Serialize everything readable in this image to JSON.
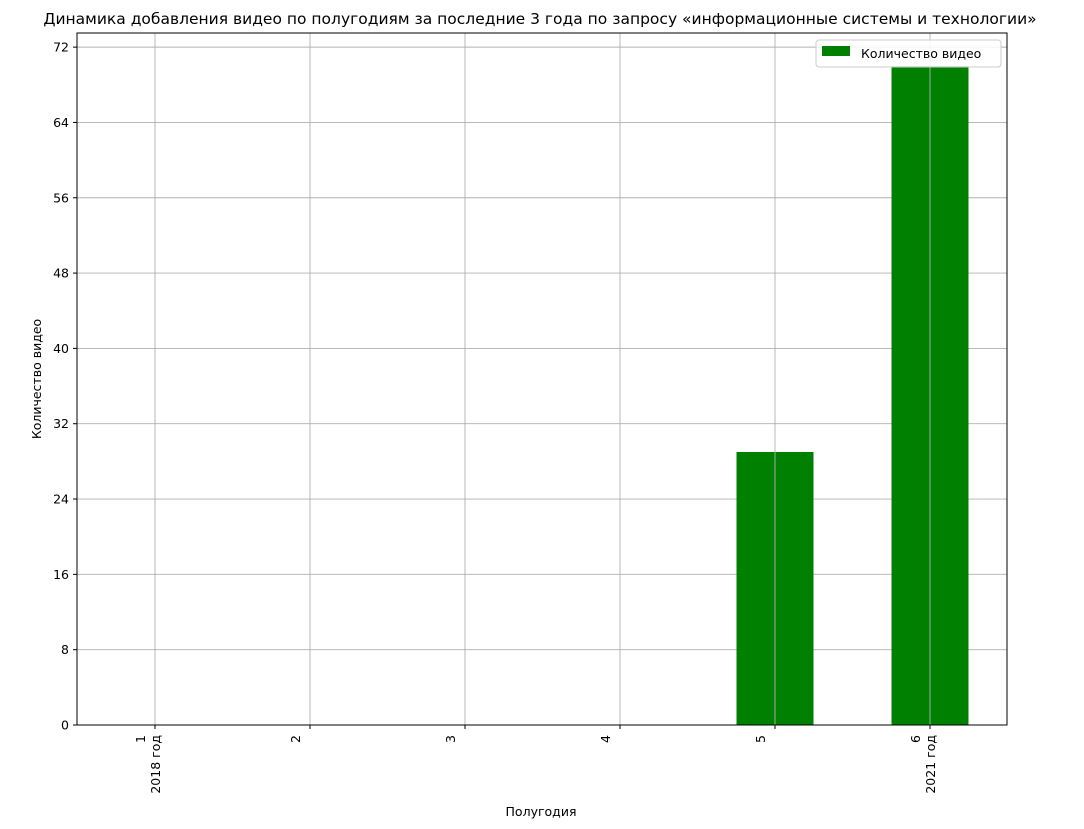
{
  "chart_data": {
    "type": "bar",
    "title": "Динамика добавления видео по полугодиям за последние 3 года по запросу «информационные системы и технологии»",
    "xlabel": "Полугодия",
    "ylabel": "Количество видео",
    "categories": [
      "1",
      "2",
      "3",
      "4",
      "5",
      "6"
    ],
    "category_sublabels": [
      "2018 год",
      "",
      "",
      "",
      "",
      "2021 год"
    ],
    "series": [
      {
        "name": "Количество видео",
        "values": [
          0,
          0,
          0,
          0,
          29,
          70
        ]
      }
    ],
    "ylim": [
      0,
      73.5
    ],
    "yticks": [
      0,
      8,
      16,
      24,
      32,
      40,
      48,
      56,
      64,
      72
    ],
    "grid": true,
    "legend": "top-right",
    "bar_color": "#008000"
  }
}
